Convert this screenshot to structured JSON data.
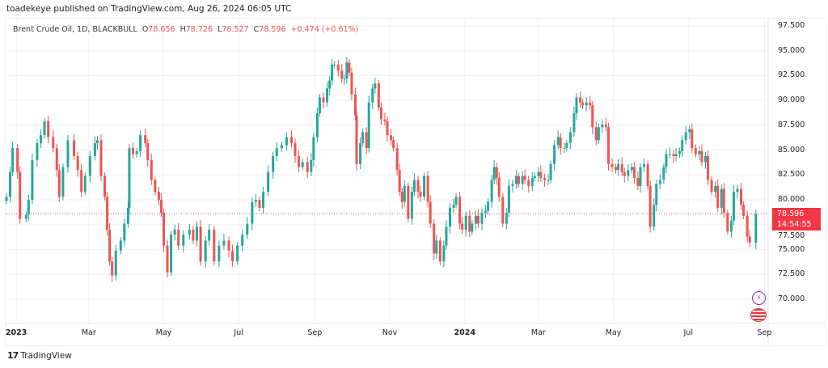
{
  "header": {
    "published": "toadekeye published on TradingView.com, Aug 26, 2024 06:05 UTC"
  },
  "legend": {
    "symbol": "Brent Crude Oil, 1D, BLACKBULL",
    "o_label": "O",
    "o": "78.656",
    "h_label": "H",
    "h": "78.726",
    "l_label": "L",
    "l": "78.527",
    "c_label": "C",
    "c": "78.596",
    "change": "+0.474 (+0.61%)"
  },
  "last_price": {
    "price": "78.596",
    "countdown": "14:54:55"
  },
  "footer": {
    "brand": "TradingView"
  },
  "colors": {
    "up": "#26a69a",
    "down": "#ef5350",
    "price_label": "#f23645",
    "grid": "#f0f2f5"
  },
  "icons": [
    "lightning-icon",
    "us-flag-icon"
  ],
  "chart_data": {
    "type": "candlestick",
    "title": "Brent Crude Oil, 1D, BLACKBULL",
    "x_unit": "days since 2023-01-01",
    "xlim": [
      -8,
      612
    ],
    "ylim": [
      67.56,
      98.31
    ],
    "grid": true,
    "y_ticks": [
      "70.000",
      "72.500",
      "75.000",
      "77.500",
      "80.000",
      "82.500",
      "85.000",
      "87.500",
      "90.000",
      "92.500",
      "95.000",
      "97.500"
    ],
    "y_tick_values": [
      70,
      72.5,
      75,
      77.5,
      80,
      82.5,
      85,
      87.5,
      90,
      92.5,
      95,
      97.5
    ],
    "x_ticks": [
      {
        "label": "2023",
        "day": 0,
        "year": true
      },
      {
        "label": "Mar",
        "day": 59
      },
      {
        "label": "May",
        "day": 120
      },
      {
        "label": "Jul",
        "day": 181
      },
      {
        "label": "Sep",
        "day": 243
      },
      {
        "label": "Nov",
        "day": 304
      },
      {
        "label": "2024",
        "day": 365,
        "year": true
      },
      {
        "label": "Mar",
        "day": 425
      },
      {
        "label": "May",
        "day": 486
      },
      {
        "label": "Jul",
        "day": 547
      },
      {
        "label": "Sep",
        "day": 609
      }
    ],
    "last_close": 78.596,
    "closes": [
      [
        -8,
        80.3
      ],
      [
        -5,
        82.8
      ],
      [
        -3,
        85.2
      ],
      [
        1,
        82.8
      ],
      [
        3,
        78.1
      ],
      [
        8,
        78.5
      ],
      [
        10,
        80
      ],
      [
        13,
        84
      ],
      [
        17,
        85.7
      ],
      [
        20,
        86.5
      ],
      [
        23,
        87.9
      ],
      [
        26,
        86.3
      ],
      [
        30,
        85.2
      ],
      [
        33,
        83
      ],
      [
        35,
        80.3
      ],
      [
        38,
        83.3
      ],
      [
        42,
        86
      ],
      [
        47,
        84.4
      ],
      [
        50,
        83
      ],
      [
        53,
        80.8
      ],
      [
        56,
        82.4
      ],
      [
        60,
        84.4
      ],
      [
        64,
        85.7
      ],
      [
        66,
        86
      ],
      [
        69,
        82.4
      ],
      [
        72,
        80.3
      ],
      [
        74,
        77
      ],
      [
        76,
        73.8
      ],
      [
        78,
        72.4
      ],
      [
        81,
        74.9
      ],
      [
        85,
        75.9
      ],
      [
        88,
        77.6
      ],
      [
        91,
        79.2
      ],
      [
        92,
        85.2
      ],
      [
        95,
        84.6
      ],
      [
        98,
        84.9
      ],
      [
        101,
        86.5
      ],
      [
        105,
        85.7
      ],
      [
        107,
        84
      ],
      [
        110,
        82
      ],
      [
        113,
        80.8
      ],
      [
        116,
        80
      ],
      [
        118,
        78.7
      ],
      [
        120,
        75.4
      ],
      [
        123,
        72.7
      ],
      [
        126,
        76.5
      ],
      [
        129,
        77
      ],
      [
        132,
        75.4
      ],
      [
        136,
        76.5
      ],
      [
        141,
        77
      ],
      [
        144,
        75.9
      ],
      [
        147,
        77.3
      ],
      [
        150,
        73.8
      ],
      [
        154,
        75.9
      ],
      [
        157,
        77
      ],
      [
        161,
        73.8
      ],
      [
        165,
        75.4
      ],
      [
        169,
        75.9
      ],
      [
        173,
        74.9
      ],
      [
        176,
        73.8
      ],
      [
        180,
        75.4
      ],
      [
        184,
        76.5
      ],
      [
        188,
        77.6
      ],
      [
        192,
        79.8
      ],
      [
        195,
        80
      ],
      [
        198,
        79.2
      ],
      [
        201,
        80.8
      ],
      [
        205,
        82.8
      ],
      [
        209,
        84.4
      ],
      [
        212,
        85.2
      ],
      [
        216,
        85.5
      ],
      [
        220,
        86.3
      ],
      [
        224,
        85.7
      ],
      [
        227,
        84.4
      ],
      [
        230,
        83.3
      ],
      [
        233,
        83.8
      ],
      [
        237,
        82.8
      ],
      [
        240,
        84
      ],
      [
        242,
        86.3
      ],
      [
        245,
        88.7
      ],
      [
        247,
        90.3
      ],
      [
        250,
        89.8
      ],
      [
        253,
        91.2
      ],
      [
        255,
        92
      ],
      [
        257,
        93.6
      ],
      [
        259,
        93.6
      ],
      [
        262,
        93
      ],
      [
        265,
        92.2
      ],
      [
        267,
        92.2
      ],
      [
        269,
        93.8
      ],
      [
        271,
        92.8
      ],
      [
        273,
        90.6
      ],
      [
        276,
        88.5
      ],
      [
        277,
        83.6
      ],
      [
        280,
        85.7
      ],
      [
        282,
        86.8
      ],
      [
        285,
        85.2
      ],
      [
        287,
        89.8
      ],
      [
        290,
        91.2
      ],
      [
        292,
        91.7
      ],
      [
        295,
        89.3
      ],
      [
        297,
        88.1
      ],
      [
        300,
        87.9
      ],
      [
        302,
        86.5
      ],
      [
        305,
        86
      ],
      [
        307,
        85.2
      ],
      [
        310,
        83
      ],
      [
        312,
        80.8
      ],
      [
        314,
        79.8
      ],
      [
        316,
        81.4
      ],
      [
        319,
        78.1
      ],
      [
        322,
        80.8
      ],
      [
        324,
        82
      ],
      [
        327,
        80.8
      ],
      [
        329,
        80.3
      ],
      [
        332,
        82.4
      ],
      [
        335,
        79.8
      ],
      [
        337,
        77.6
      ],
      [
        340,
        74.6
      ],
      [
        342,
        75.9
      ],
      [
        345,
        73.8
      ],
      [
        348,
        75.4
      ],
      [
        350,
        77.3
      ],
      [
        353,
        79.2
      ],
      [
        356,
        79.5
      ],
      [
        358,
        80.3
      ],
      [
        361,
        77.6
      ],
      [
        363,
        77
      ],
      [
        366,
        78.4
      ],
      [
        369,
        76.8
      ],
      [
        371,
        77.6
      ],
      [
        374,
        78.4
      ],
      [
        376,
        77.6
      ],
      [
        379,
        78.7
      ],
      [
        382,
        78.9
      ],
      [
        384,
        79.8
      ],
      [
        387,
        82
      ],
      [
        389,
        83.3
      ],
      [
        391,
        82.2
      ],
      [
        393,
        80.3
      ],
      [
        396,
        77.6
      ],
      [
        399,
        78.7
      ],
      [
        401,
        81.4
      ],
      [
        404,
        81.6
      ],
      [
        407,
        82.4
      ],
      [
        409,
        81.6
      ],
      [
        412,
        82.4
      ],
      [
        414,
        82
      ],
      [
        417,
        81.4
      ],
      [
        420,
        82.2
      ],
      [
        422,
        82.4
      ],
      [
        425,
        82.8
      ],
      [
        427,
        82.2
      ],
      [
        430,
        82
      ],
      [
        433,
        82
      ],
      [
        435,
        83.6
      ],
      [
        438,
        85.5
      ],
      [
        441,
        86.3
      ],
      [
        443,
        85.2
      ],
      [
        446,
        85.2
      ],
      [
        448,
        85.7
      ],
      [
        451,
        86.8
      ],
      [
        454,
        88.7
      ],
      [
        456,
        90.3
      ],
      [
        459,
        89.8
      ],
      [
        461,
        89.5
      ],
      [
        464,
        89.8
      ],
      [
        467,
        89.5
      ],
      [
        469,
        87.3
      ],
      [
        472,
        86
      ],
      [
        474,
        87.3
      ],
      [
        477,
        87.6
      ],
      [
        480,
        87.3
      ],
      [
        482,
        83.6
      ],
      [
        485,
        83.3
      ],
      [
        488,
        83
      ],
      [
        490,
        83.6
      ],
      [
        493,
        82.8
      ],
      [
        495,
        82.4
      ],
      [
        498,
        83
      ],
      [
        501,
        83.3
      ],
      [
        503,
        82.2
      ],
      [
        506,
        81.4
      ],
      [
        508,
        83.3
      ],
      [
        511,
        83.6
      ],
      [
        514,
        81.4
      ],
      [
        516,
        77.3
      ],
      [
        519,
        79.5
      ],
      [
        521,
        81.6
      ],
      [
        524,
        82
      ],
      [
        527,
        83.3
      ],
      [
        529,
        84.6
      ],
      [
        532,
        84.6
      ],
      [
        535,
        84.4
      ],
      [
        537,
        84.6
      ],
      [
        540,
        84.9
      ],
      [
        542,
        86
      ],
      [
        545,
        86.8
      ],
      [
        548,
        87.1
      ],
      [
        550,
        85.2
      ],
      [
        553,
        84.6
      ],
      [
        556,
        84.9
      ],
      [
        558,
        83.8
      ],
      [
        561,
        84.4
      ],
      [
        563,
        82
      ],
      [
        566,
        80.8
      ],
      [
        569,
        81.4
      ],
      [
        571,
        79.2
      ],
      [
        574,
        81.1
      ],
      [
        576,
        78.7
      ],
      [
        579,
        76.8
      ],
      [
        582,
        77.9
      ],
      [
        584,
        80.8
      ],
      [
        587,
        81.1
      ],
      [
        590,
        79.5
      ],
      [
        592,
        78.4
      ],
      [
        595,
        76.3
      ],
      [
        597,
        75.7
      ],
      [
        602,
        78.596
      ]
    ]
  }
}
